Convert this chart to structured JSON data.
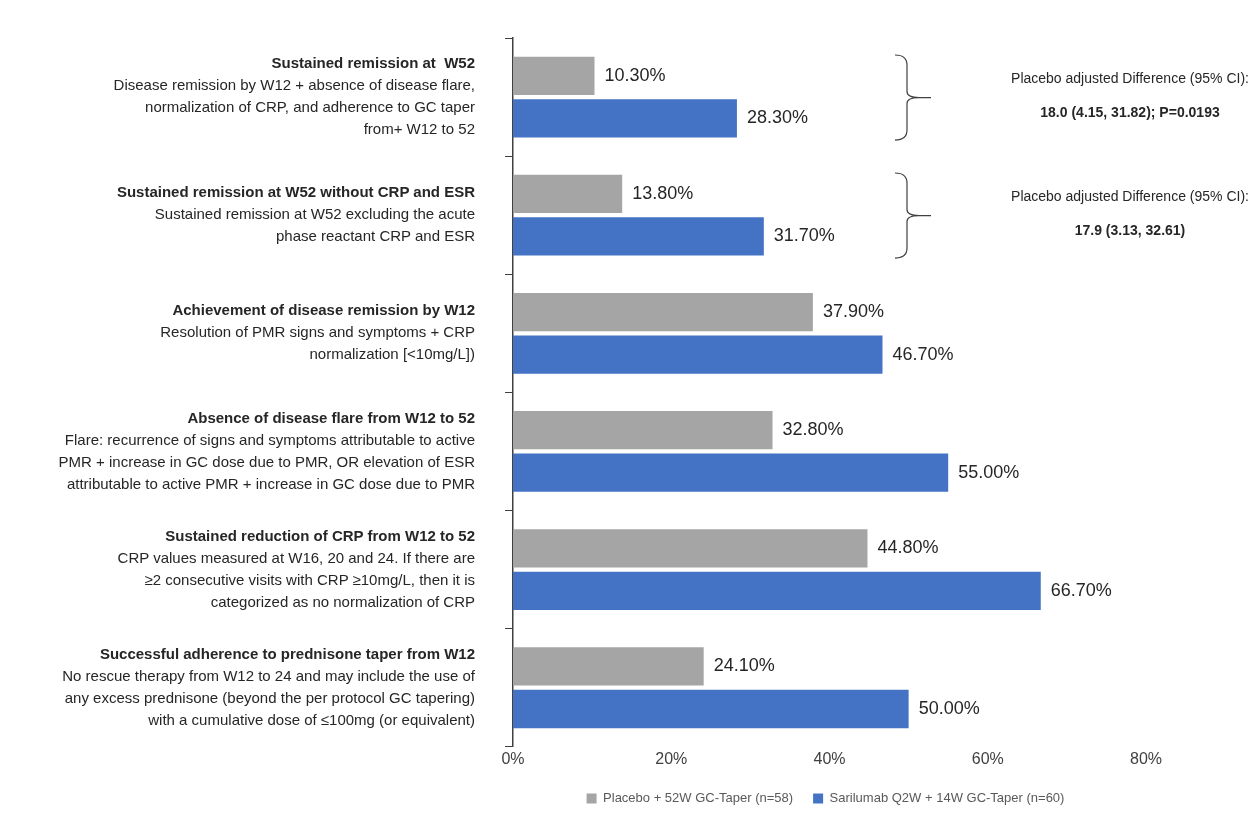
{
  "chart_data": {
    "type": "bar",
    "orientation": "horizontal",
    "categories": [
      "Sustained remission at  W52\nDisease remission by W12 + absence of disease flare,\nnormalization of CRP, and adherence to GC taper\nfrom+ W12 to 52",
      "Sustained remission at W52 without CRP and ESR\nSustained remission at W52 excluding the acute\nphase reactant CRP and ESR",
      "Achievement of disease remission by W12\nResolution of PMR signs and symptoms + CRP\nnormalization [<10mg/L])",
      "Absence of disease flare from W12 to 52\nFlare: recurrence of signs and symptoms attributable to active\nPMR + increase in GC dose due to PMR, OR elevation of ESR\nattributable to active PMR + increase in GC dose due to PMR",
      "Sustained reduction of CRP from W12 to 52\nCRP values measured at W16, 20 and 24. If there are\n≥2 consecutive visits with CRP ≥10mg/L, then it is\ncategorized as no normalization of CRP",
      "Successful adherence to prednisone taper from W12\nNo rescue therapy from W12 to 24 and may include the use of\nany excess prednisone (beyond the per protocol GC tapering)\nwith a cumulative dose of ≤100mg (or equivalent)"
    ],
    "series": [
      {
        "name": "Placebo + 52W GC-Taper (n=58)",
        "color": "#a5a5a5",
        "values": [
          10.3,
          13.8,
          37.9,
          32.8,
          44.8,
          24.1
        ],
        "value_labels": [
          "10.30%",
          "13.80%",
          "37.90%",
          "32.80%",
          "44.80%",
          "24.10%"
        ]
      },
      {
        "name": "Sarilumab Q2W + 14W GC-Taper (n=60)",
        "color": "#4472c4",
        "values": [
          28.3,
          31.7,
          46.7,
          55.0,
          66.7,
          50.0
        ],
        "value_labels": [
          "28.30%",
          "31.70%",
          "46.70%",
          "55.00%",
          "66.70%",
          "50.00%"
        ]
      }
    ],
    "xlim": [
      0,
      80
    ],
    "xticks": [
      {
        "value": 0,
        "label": "0%"
      },
      {
        "value": 20,
        "label": "20%"
      },
      {
        "value": 40,
        "label": "40%"
      },
      {
        "value": 60,
        "label": "60%"
      },
      {
        "value": 80,
        "label": "80%"
      }
    ],
    "grid": false,
    "legend": "bottom",
    "annotations": [
      "Placebo adjusted Difference (95% CI):",
      "18.0 (4.15, 31.82); P=0.0193",
      "Placebo adjusted Difference (95% CI):",
      "17.9 (3.13, 32.61)"
    ]
  }
}
